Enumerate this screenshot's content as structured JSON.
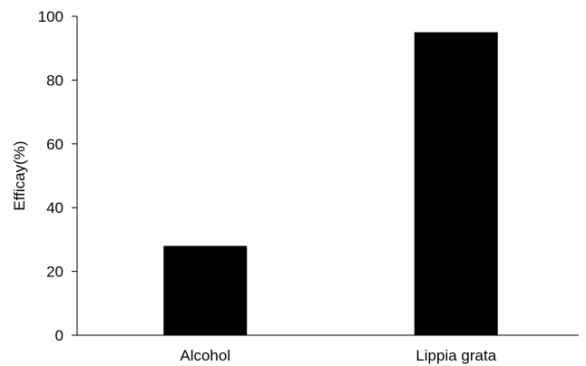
{
  "chart_data": {
    "type": "bar",
    "categories": [
      "Alcohol",
      "Lippia grata"
    ],
    "values": [
      28,
      95
    ],
    "ylabel": "Efficay(%)",
    "xlabel": "",
    "ylim": [
      0,
      100
    ],
    "yticks": [
      "0",
      "20",
      "40",
      "60",
      "80",
      "100"
    ],
    "grid": false,
    "legend": "none",
    "bar_color": "#000000"
  }
}
